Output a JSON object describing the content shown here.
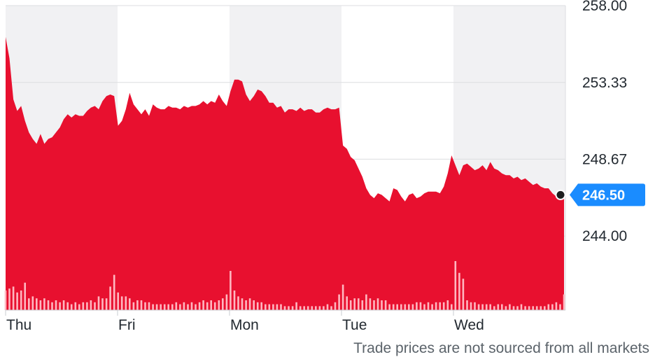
{
  "footer_note": "Trade prices are not sourced from all markets",
  "colors": {
    "area": "#e8102f",
    "volume": "#ffb7c0",
    "band": "#f1f1f3",
    "grid": "#dcdde0",
    "price_tag": "#1a8cff",
    "dot": "#1d1d1f"
  },
  "chart_data": {
    "type": "area",
    "xlabel": "",
    "ylabel": "",
    "ylim": [
      239.5,
      258.0
    ],
    "y_ticks": [
      "258.00",
      "253.33",
      "248.67",
      "244.00"
    ],
    "x_ticks": [
      "Thu",
      "Fri",
      "Mon",
      "Tue",
      "Wed"
    ],
    "grid": true,
    "current_price": "246.50",
    "series": [
      {
        "values": {
          "Thu": [
            256.1,
            254.8,
            252.3,
            251.6,
            251.9,
            251.0,
            250.3,
            249.9,
            249.6,
            250.2,
            249.6,
            249.9,
            250.0,
            250.3,
            250.6,
            251.1,
            251.4,
            251.2,
            251.4,
            251.3,
            251.3,
            251.6,
            251.8,
            251.9,
            251.7,
            252.2,
            252.5,
            252.6,
            252.5
          ],
          "Fri": [
            250.7,
            251.0,
            251.7,
            252.7,
            252.0,
            251.7,
            251.4,
            251.7,
            251.3,
            252.0,
            251.8,
            251.7,
            251.7,
            251.9,
            251.8,
            251.8,
            251.7,
            251.9,
            251.8,
            251.9,
            251.9,
            252.0,
            252.2,
            252.0,
            252.2,
            252.1,
            252.6,
            252.2,
            251.9
          ],
          "Mon": [
            252.8,
            253.5,
            253.5,
            253.4,
            252.6,
            252.2,
            252.5,
            252.9,
            252.8,
            252.5,
            252.1,
            252.1,
            251.8,
            251.9,
            251.5,
            251.7,
            251.7,
            251.6,
            251.8,
            251.6,
            251.7,
            251.7,
            251.5,
            251.5,
            251.7,
            251.8,
            251.7,
            251.7,
            251.8
          ],
          "Tue": [
            249.5,
            249.3,
            248.8,
            248.6,
            248.1,
            247.6,
            246.9,
            246.5,
            246.3,
            246.6,
            246.5,
            246.3,
            246.1,
            246.9,
            246.8,
            246.4,
            246.1,
            246.5,
            246.6,
            246.3,
            246.4,
            246.6,
            246.7,
            246.7,
            246.7,
            246.6,
            247.0,
            247.8,
            248.9
          ],
          "Wed": [
            248.3,
            247.7,
            248.3,
            248.4,
            248.2,
            248.0,
            248.1,
            248.3,
            248.0,
            248.5,
            248.1,
            248.0,
            247.8,
            247.7,
            247.7,
            247.5,
            247.6,
            247.4,
            247.5,
            247.3,
            247.1,
            247.2,
            247.0,
            246.9,
            246.9,
            246.6,
            246.4,
            246.3,
            246.5
          ]
        }
      }
    ],
    "volume": {
      "Thu": [
        10,
        11,
        12,
        9,
        10,
        14,
        6,
        7,
        6,
        5,
        6,
        5,
        4,
        5,
        4,
        5,
        4,
        3,
        4,
        3,
        4,
        4,
        5,
        4,
        7,
        6,
        6,
        12,
        18
      ],
      "Fri": [
        9,
        7,
        7,
        6,
        4,
        5,
        5,
        4,
        4,
        3,
        3,
        3,
        3,
        3,
        3,
        4,
        3,
        4,
        3,
        4,
        3,
        4,
        5,
        4,
        5,
        4,
        5,
        6,
        8
      ],
      "Mon": [
        20,
        10,
        7,
        6,
        5,
        6,
        5,
        4,
        4,
        3,
        3,
        3,
        3,
        3,
        2,
        2,
        2,
        4,
        2,
        2,
        2,
        2,
        2,
        2,
        2,
        3,
        2,
        4,
        8
      ],
      "Tue": [
        13,
        7,
        5,
        6,
        6,
        5,
        8,
        6,
        5,
        6,
        5,
        5,
        3,
        3,
        3,
        3,
        3,
        3,
        3,
        4,
        4,
        3,
        4,
        3,
        4,
        4,
        4,
        5,
        3
      ],
      "Wed": [
        25,
        19,
        16,
        5,
        4,
        4,
        3,
        3,
        3,
        3,
        2,
        3,
        3,
        2,
        3,
        2,
        2,
        3,
        2,
        2,
        2,
        2,
        2,
        2,
        3,
        3,
        4,
        3,
        8
      ]
    }
  }
}
